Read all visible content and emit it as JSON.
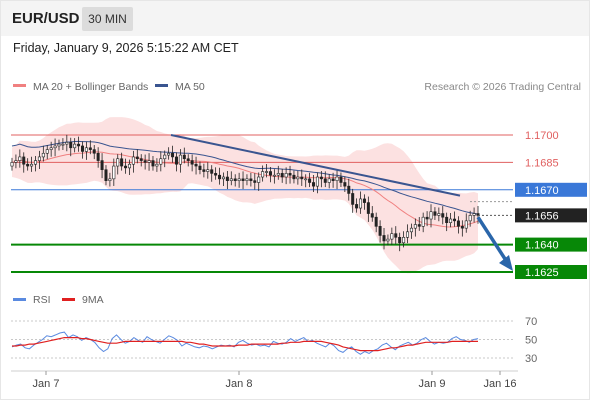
{
  "header": {
    "symbol": "EUR/USD",
    "timeframe": "30 MIN"
  },
  "datetime": "Friday, January 9, 2026 5:15:22 AM CET",
  "colors": {
    "ma20": "#f08080",
    "ma50": "#3a5590",
    "resistance": "#e06060",
    "pivot": "#3a78d8",
    "support": "#078807",
    "price_tag": "#222222",
    "rsi": "#5a8ae0",
    "rsi_ma": "#e02020",
    "forecast_arrow": "#2a66aa",
    "candle_bull": "#ffffff",
    "candle_bear": "#222222",
    "bollinger_fill": "#fbdada"
  },
  "legend": {
    "ma20_label": "MA 20 + Bollinger Bands",
    "ma50_label": "MA 50",
    "credit": "Research © 2026 Trading Central",
    "rsi_label": "RSI",
    "rsi_ma_label": "9MA"
  },
  "chart_data": {
    "type": "candlestick",
    "instrument": "EUR/USD",
    "interval": "30 MIN",
    "ylim": [
      1.1615,
      1.1712
    ],
    "x_ticks": [
      "Jan 7",
      "Jan 8",
      "Jan 9",
      "Jan 16"
    ],
    "levels": [
      {
        "label": "1.1700",
        "value": 1.17,
        "kind": "resistance"
      },
      {
        "label": "1.1685",
        "value": 1.1685,
        "kind": "resistance"
      },
      {
        "label": "1.1670",
        "value": 1.167,
        "kind": "pivot"
      },
      {
        "label": "1.1640",
        "value": 1.164,
        "kind": "support"
      },
      {
        "label": "1.1625",
        "value": 1.1625,
        "kind": "support"
      }
    ],
    "last_price": {
      "label": "1.1656",
      "value": 1.1656
    },
    "close_series": [
      1.1685,
      1.1686,
      1.1688,
      1.1684,
      1.1683,
      1.1684,
      1.1686,
      1.1688,
      1.169,
      1.1692,
      1.1693,
      1.1694,
      1.1695,
      1.1695,
      1.1696,
      1.1693,
      1.1695,
      1.1694,
      1.1691,
      1.1693,
      1.1692,
      1.169,
      1.1686,
      1.1681,
      1.1675,
      1.1676,
      1.1683,
      1.1687,
      1.1683,
      1.1682,
      1.1684,
      1.1688,
      1.1687,
      1.1686,
      1.1685,
      1.1686,
      1.1683,
      1.1684,
      1.1687,
      1.1689,
      1.169,
      1.1688,
      1.1684,
      1.1689,
      1.1687,
      1.1686,
      1.1684,
      1.1683,
      1.1681,
      1.168,
      1.1681,
      1.1679,
      1.1678,
      1.1676,
      1.1677,
      1.1675,
      1.1676,
      1.1675,
      1.1676,
      1.1675,
      1.1676,
      1.1675,
      1.1674,
      1.1677,
      1.168,
      1.168,
      1.1678,
      1.1678,
      1.1679,
      1.1677,
      1.1679,
      1.1678,
      1.1676,
      1.1677,
      1.1676,
      1.1676,
      1.1674,
      1.1672,
      1.1677,
      1.1676,
      1.1674,
      1.1676,
      1.1675,
      1.1677,
      1.1674,
      1.1672,
      1.1668,
      1.1662,
      1.166,
      1.1665,
      1.1663,
      1.1657,
      1.1655,
      1.165,
      1.1645,
      1.1642,
      1.1643,
      1.1646,
      1.1644,
      1.1641,
      1.1644,
      1.1647,
      1.1649,
      1.1651,
      1.165,
      1.1655,
      1.1654,
      1.1658,
      1.1656,
      1.1657,
      1.1655,
      1.1652,
      1.1654,
      1.1653,
      1.165,
      1.1649,
      1.1653,
      1.1656,
      1.1657,
      1.1656
    ],
    "trendlines": [
      {
        "from": [
          1.17
        ],
        "to": [
          1.1667
        ]
      }
    ],
    "forecast": {
      "direction": "down",
      "target": 1.1625
    }
  },
  "rsi_data": {
    "ylim": [
      20,
      80
    ],
    "ticks": [
      "70",
      "50",
      "30"
    ],
    "tick_values": [
      70,
      50,
      30
    ],
    "rsi": [
      42,
      44,
      45,
      41,
      40,
      44,
      47,
      50,
      54,
      53,
      55,
      57,
      58,
      52,
      55,
      53,
      49,
      52,
      50,
      47,
      41,
      37,
      40,
      51,
      55,
      50,
      46,
      48,
      52,
      49,
      47,
      53,
      50,
      48,
      46,
      50,
      54,
      52,
      49,
      43,
      46,
      44,
      42,
      41,
      43,
      42,
      40,
      42,
      44,
      43,
      44,
      42,
      47,
      49,
      46,
      44,
      45,
      43,
      44,
      42,
      48,
      46,
      45,
      47,
      51,
      48,
      50,
      52,
      48,
      49,
      46,
      44,
      42,
      46,
      43,
      38,
      36,
      40,
      42,
      37,
      34,
      37,
      35,
      38,
      40,
      44,
      46,
      42,
      39,
      43,
      45,
      47,
      44,
      46,
      50,
      52,
      48,
      45,
      47,
      46,
      47,
      51,
      53,
      50,
      49,
      47,
      50,
      51
    ],
    "ma9": [
      43,
      43,
      44,
      44,
      45,
      45,
      46,
      47,
      48,
      49,
      50,
      51,
      52,
      52,
      52,
      52,
      51,
      51,
      50,
      49,
      48,
      47,
      46,
      46,
      46,
      47,
      48,
      48,
      48,
      48,
      48,
      48,
      48,
      48,
      48,
      48,
      48,
      48,
      48,
      48,
      47,
      47,
      46,
      45,
      45,
      44,
      43,
      43,
      43,
      43,
      43,
      43,
      44,
      44,
      44,
      45,
      45,
      45,
      45,
      45,
      45,
      45,
      46,
      46,
      47,
      47,
      47,
      48,
      48,
      48,
      48,
      48,
      47,
      46,
      45,
      44,
      42,
      41,
      40,
      39,
      38,
      38,
      38,
      38,
      38,
      39,
      40,
      41,
      41,
      42,
      43,
      44,
      44,
      45,
      46,
      47,
      47,
      47,
      47,
      47,
      47,
      48,
      48,
      48,
      48,
      48,
      48,
      48
    ]
  }
}
